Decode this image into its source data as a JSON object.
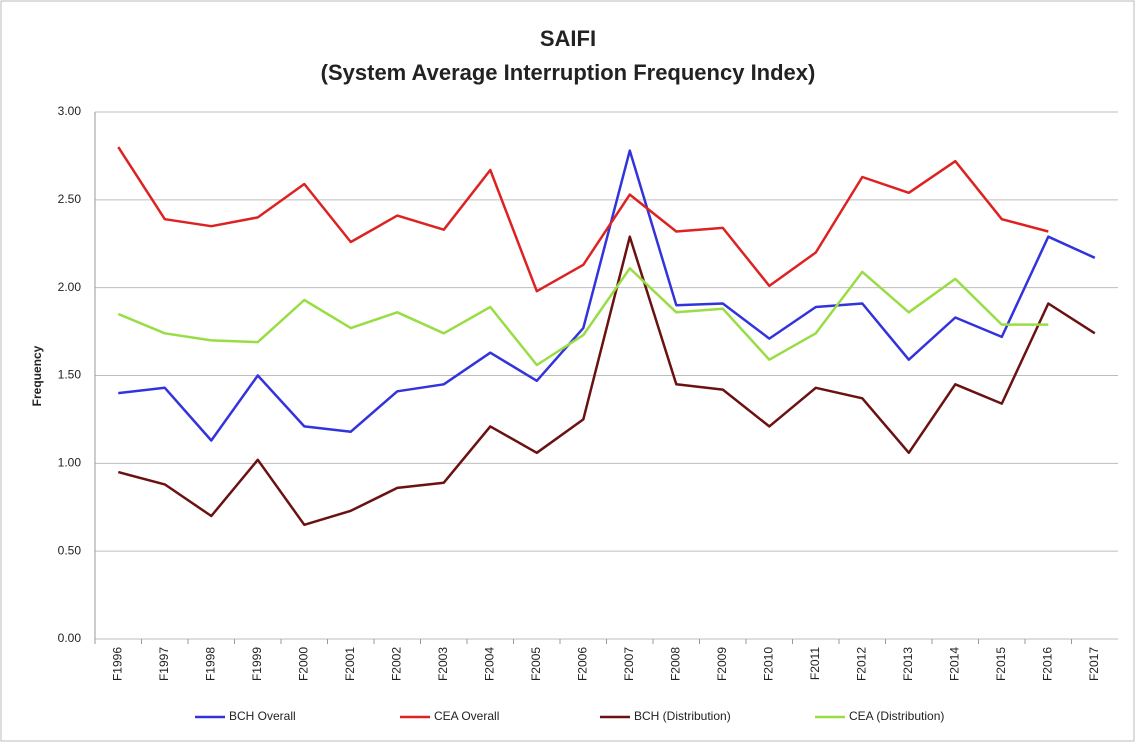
{
  "chart_data": {
    "type": "line",
    "title": "SAIFI",
    "subtitle": "(System Average Interruption Frequency Index)",
    "y_label": "Frequency",
    "categories": [
      "F1996",
      "F1997",
      "F1998",
      "F1999",
      "F2000",
      "F2001",
      "F2002",
      "F2003",
      "F2004",
      "F2005",
      "F2006",
      "F2007",
      "F2008",
      "F2009",
      "F2010",
      "F2011",
      "F2012",
      "F2013",
      "F2014",
      "F2015",
      "F2016",
      "F2017"
    ],
    "series": [
      {
        "name": "BCH Overall",
        "color": "#3333dd",
        "values": [
          1.4,
          1.43,
          1.13,
          1.5,
          1.21,
          1.18,
          1.41,
          1.45,
          1.63,
          1.47,
          1.77,
          2.78,
          1.9,
          1.91,
          1.71,
          1.89,
          1.91,
          1.59,
          1.83,
          1.72,
          2.29,
          2.17
        ]
      },
      {
        "name": "CEA Overall",
        "color": "#dd2222",
        "values": [
          2.8,
          2.39,
          2.35,
          2.4,
          2.59,
          2.26,
          2.41,
          2.33,
          2.67,
          1.98,
          2.13,
          2.53,
          2.32,
          2.34,
          2.01,
          2.2,
          2.63,
          2.54,
          2.72,
          2.39,
          2.32,
          null
        ]
      },
      {
        "name": "BCH (Distribution)",
        "color": "#6b1111",
        "values": [
          0.95,
          0.88,
          0.7,
          1.02,
          0.65,
          0.73,
          0.86,
          0.89,
          1.21,
          1.06,
          1.25,
          2.29,
          1.45,
          1.42,
          1.21,
          1.43,
          1.37,
          1.06,
          1.45,
          1.34,
          1.91,
          1.74
        ]
      },
      {
        "name": "CEA (Distribution)",
        "color": "#99dd44",
        "values": [
          1.85,
          1.74,
          1.7,
          1.69,
          1.93,
          1.77,
          1.86,
          1.74,
          1.89,
          1.56,
          1.73,
          2.11,
          1.86,
          1.88,
          1.59,
          1.74,
          2.09,
          1.86,
          2.05,
          1.79,
          1.79,
          null
        ]
      }
    ],
    "ylim": [
      0,
      3
    ],
    "yticks": [
      {
        "value": 0,
        "label": "0.00"
      },
      {
        "value": 0.5,
        "label": "0.50"
      },
      {
        "value": 1,
        "label": "1.00"
      },
      {
        "value": 1.5,
        "label": "1.50"
      },
      {
        "value": 2,
        "label": "2.00"
      },
      {
        "value": 2.5,
        "label": "2.50"
      },
      {
        "value": 3,
        "label": "3.00"
      }
    ],
    "grid": true,
    "legend": "bottom"
  }
}
